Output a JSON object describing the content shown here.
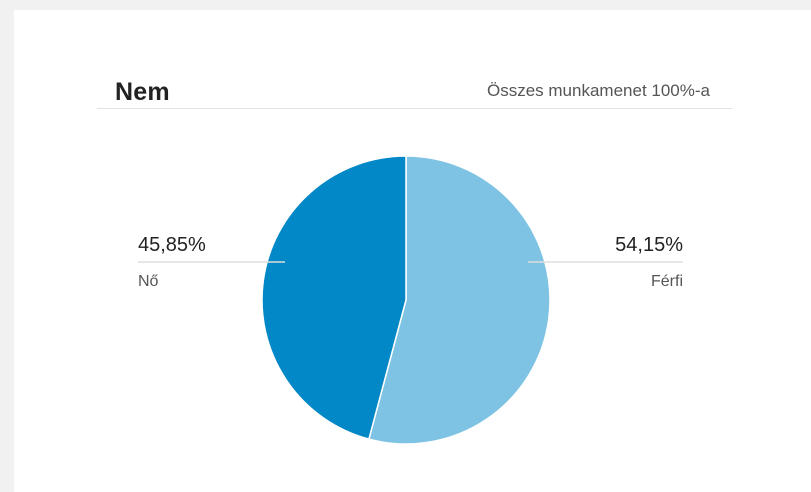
{
  "header": {
    "title": "Nem",
    "subtitle": "Összes munkamenet 100%-a"
  },
  "colors": {
    "series": [
      "#0288c7",
      "#7ec3e3"
    ],
    "leader": "#dddddd"
  },
  "chart_data": {
    "type": "pie",
    "title": "Nem",
    "subtitle": "Összes munkamenet 100%-a",
    "slices": [
      {
        "label": "Nő",
        "value": 45.85,
        "display": "45,85%",
        "color": "#0288c7",
        "side": "left"
      },
      {
        "label": "Férfi",
        "value": 54.15,
        "display": "54,15%",
        "color": "#7ec3e3",
        "side": "right"
      }
    ],
    "start_angle_deg": 0,
    "direction": "counterclockwise"
  }
}
